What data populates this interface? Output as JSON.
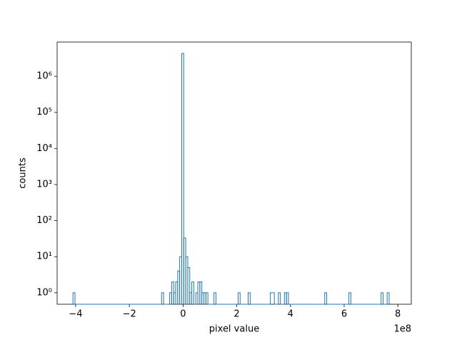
{
  "chart_data": {
    "type": "histogram",
    "x_label": "pixel value",
    "y_label": "counts",
    "x_offset_label": "1e8",
    "color": "#1f77b4",
    "log_y": true,
    "grid": false,
    "bins": [
      -4.1,
      -4.025,
      -0.8,
      -0.725,
      -0.5,
      -0.425,
      -0.35,
      -0.275,
      -0.2,
      -0.125,
      -0.05,
      0.025,
      0.1,
      0.175,
      0.25,
      0.325,
      0.4,
      0.475,
      0.55,
      0.625,
      0.7,
      0.775,
      0.85,
      0.925,
      1.15,
      1.225,
      2.05,
      2.125,
      2.425,
      2.5,
      3.25,
      3.4,
      3.55,
      3.625,
      3.775,
      3.85,
      3.925,
      5.275,
      5.35,
      6.175,
      6.25,
      7.375,
      7.45,
      7.6,
      7.675
    ],
    "counts": [
      1,
      0,
      1,
      0,
      1,
      2,
      1,
      2,
      4,
      10,
      4300000,
      33,
      10,
      5,
      1,
      2,
      0,
      1,
      2,
      2,
      1,
      1,
      1,
      0,
      1,
      0,
      1,
      0,
      1,
      0,
      1,
      0,
      1,
      0,
      1,
      1,
      0,
      1,
      0,
      1,
      0,
      1,
      0,
      1
    ],
    "xlim": [
      -4.69,
      8.5
    ],
    "xticks": [
      {
        "value": -4,
        "label": "−4"
      },
      {
        "value": -2,
        "label": "−2"
      },
      0,
      2,
      4,
      6,
      8
    ],
    "ylim": [
      0.48,
      8900000
    ],
    "yticks": [
      {
        "value": 1,
        "label": "10⁰"
      },
      {
        "value": 10,
        "label": "10¹"
      },
      {
        "value": 100,
        "label": "10²"
      },
      {
        "value": 1000,
        "label": "10³"
      },
      {
        "value": 10000,
        "label": "10⁴"
      },
      {
        "value": 100000,
        "label": "10⁵"
      },
      {
        "value": 1000000,
        "label": "10⁶"
      }
    ]
  }
}
